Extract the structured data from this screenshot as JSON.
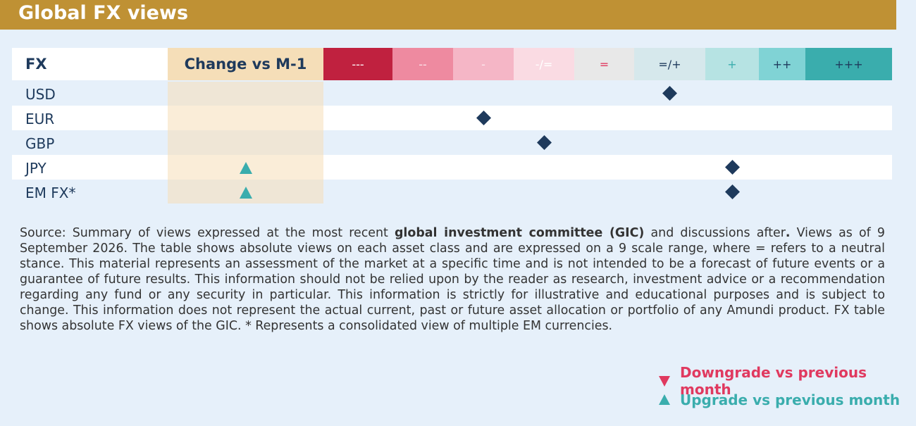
{
  "header": {
    "title": "Global FX views"
  },
  "table": {
    "columns": {
      "label": "FX",
      "change": "Change vs M-1"
    },
    "scale": [
      {
        "label": "---",
        "color": "#c0213f",
        "text_color": "#ffffff"
      },
      {
        "label": "--",
        "color": "#ee8aa0",
        "text_color": "#fbe3ea"
      },
      {
        "label": "-",
        "color": "#f5b6c6",
        "text_color": "#fde9ee"
      },
      {
        "label": "-/=",
        "color": "#fadbe3",
        "text_color": "#ffffff"
      },
      {
        "label": "=",
        "color": "#e8e8e8",
        "text_color": "#e0395f"
      },
      {
        "label": "=/+",
        "color": "#d6e8ec",
        "text_color": "#1e3a5c"
      },
      {
        "label": "+",
        "color": "#b6e3e3",
        "text_color": "#3aadad"
      },
      {
        "label": "++",
        "color": "#80d3d5",
        "text_color": "#1e3a5c"
      },
      {
        "label": "+++",
        "color": "#3aadad",
        "text_color": "#1e3a5c"
      }
    ],
    "rows": [
      {
        "label": "USD",
        "change": null,
        "view": "=/+"
      },
      {
        "label": "EUR",
        "change": null,
        "view": "-"
      },
      {
        "label": "GBP",
        "change": null,
        "view": "-/="
      },
      {
        "label": "JPY",
        "change": "up",
        "view": "+"
      },
      {
        "label": "EM FX*",
        "change": "up",
        "view": "+"
      }
    ]
  },
  "footnote": {
    "parts": [
      {
        "text": "Source: Summary of views expressed at the most recent ",
        "bold": false
      },
      {
        "text": "global investment committee (GIC)",
        "bold": true
      },
      {
        "text": " and discussions after",
        "bold": false
      },
      {
        "text": ".",
        "bold": true
      },
      {
        "text": " Views as of 9 September 2026. The table shows absolute views on each asset class and are expressed on a 9 scale range, where = refers to a neutral stance. This material represents an assessment of the market at a specific time and is not intended to be a forecast of future events or a guarantee of future results. This information should not be relied upon by the reader as research, investment advice or a recommendation regarding any fund or any security in particular. This information is strictly for illustrative and educational purposes and is subject to change. This information does not represent the actual current, past or future asset allocation or portfolio of any Amundi product. FX table shows absolute FX views of the GIC. * Represents a consolidated view of multiple EM currencies.",
        "bold": false
      }
    ]
  },
  "legend": [
    {
      "label": "Downgrade vs previous month",
      "change": "down",
      "color": "#e0395f"
    },
    {
      "label": "Upgrade vs previous month",
      "change": "up",
      "color": "#3aadad"
    }
  ]
}
